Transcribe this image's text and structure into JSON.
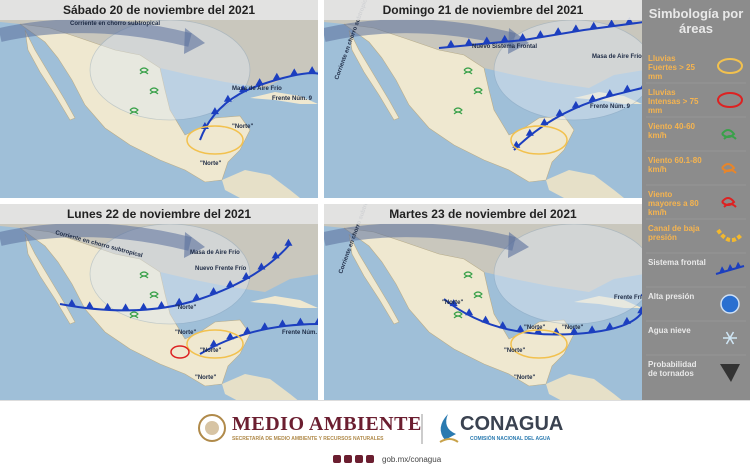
{
  "panels": [
    {
      "title": "Sábado 20 de noviembre del 2021",
      "labels": [
        "Corriente en chorro subtropical",
        "Masa de Aire Frío",
        "Frente Núm. 9",
        "\"Norte\"",
        "\"Norte\""
      ]
    },
    {
      "title": "Domingo 21 de noviembre del 2021",
      "labels": [
        "Corriente en chorro subtropical",
        "Nuevo Sistema Frontal",
        "Masa de Aire Frío",
        "Frente Núm. 9"
      ]
    },
    {
      "title": "Lunes 22 de noviembre del 2021",
      "labels": [
        "Corriente en chorro subtropical",
        "Masa de Aire Frío",
        "Nuevo Frente Frío",
        "\"Norte\"",
        "\"Norte\"",
        "\"Norte\"",
        "\"Norte\"",
        "Frente Núm. 9"
      ]
    },
    {
      "title": "Martes 23 de noviembre del 2021",
      "labels": [
        "Corriente en chorro subtropical",
        "Frente Frío",
        "\"Norte\"",
        "\"Norte\"",
        "\"Norte\"",
        "\"Norte\"",
        "\"Norte\""
      ]
    }
  ],
  "legend": {
    "title": "Simbología por áreas",
    "items": [
      "Lluvias Fuertes > 25 mm",
      "Lluvias Intensas > 75 mm",
      "Viento 40-60 km/h",
      "Viento 60.1-80 km/h",
      "Viento mayores a 80 km/h",
      "Canal de baja presión",
      "Sistema frontal",
      "Alta presión",
      "Agua nieve",
      "Probabilidad de tornados"
    ]
  },
  "footer": {
    "brand1": "MEDIO AMBIENTE",
    "brand1_sub": "SECRETARÍA DE MEDIO AMBIENTE Y RECURSOS NATURALES",
    "brand2": "CONAGUA",
    "brand2_sub": "COMISIÓN NACIONAL DEL AGUA",
    "url": "gob.mx/conagua"
  }
}
